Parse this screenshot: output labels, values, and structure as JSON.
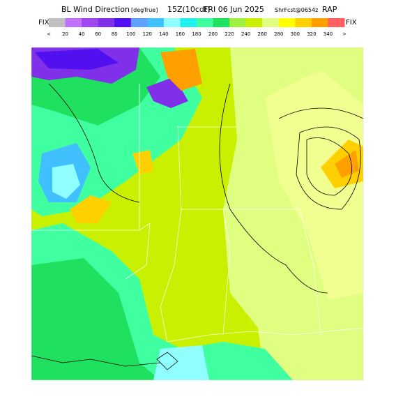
{
  "header": {
    "title": "BL Wind Direction",
    "units": "[degTrue]",
    "valid": "15Z(10cdt)",
    "date": "FRI 06 Jun 2025",
    "forecast": "ShrFcst@0654z",
    "model": "RAP"
  },
  "legend": {
    "left_label": "FIX",
    "right_label": "FIX",
    "labels": [
      "<",
      "20",
      "40",
      "60",
      "80",
      "100",
      "120",
      "140",
      "160",
      "180",
      "200",
      "220",
      "240",
      "260",
      "280",
      "300",
      "320",
      "340",
      ">"
    ],
    "colors": [
      "#c0c0c0",
      "#c070ff",
      "#a048f0",
      "#8030e8",
      "#5010f0",
      "#60a0ff",
      "#40c0ff",
      "#90ffff",
      "#20f0f0",
      "#40ffa0",
      "#20e060",
      "#a0f040",
      "#c8f000",
      "#e0ff80",
      "#ffff00",
      "#ffd000",
      "#ffa000",
      "#ff6060"
    ]
  }
}
